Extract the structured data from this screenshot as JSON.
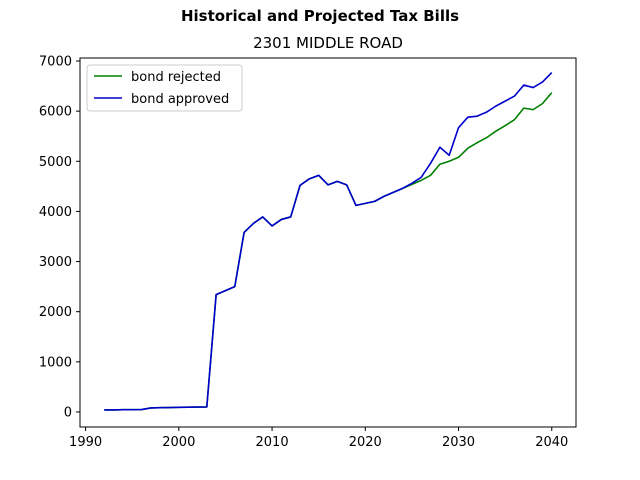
{
  "chart_data": {
    "type": "line",
    "suptitle": "Historical and Projected Tax Bills",
    "title": "2301 MIDDLE ROAD",
    "xlabel": "",
    "ylabel": "",
    "xlim": [
      1989.4,
      2042.6
    ],
    "ylim": [
      -300,
      7060
    ],
    "xticks": [
      1990,
      2000,
      2010,
      2020,
      2030,
      2040
    ],
    "yticks": [
      0,
      1000,
      2000,
      3000,
      4000,
      5000,
      6000,
      7000
    ],
    "grid": false,
    "legend": "upper left",
    "series": [
      {
        "name": "bond rejected",
        "color": "#008000",
        "x": [
          1992,
          1993,
          1994,
          1995,
          1996,
          1997,
          1998,
          1999,
          2000,
          2001,
          2002,
          2003,
          2004,
          2005,
          2006,
          2007,
          2008,
          2009,
          2010,
          2011,
          2012,
          2013,
          2014,
          2015,
          2016,
          2017,
          2018,
          2019,
          2020,
          2021,
          2022,
          2023,
          2024,
          2025,
          2026,
          2027,
          2028,
          2029,
          2030,
          2031,
          2032,
          2033,
          2034,
          2035,
          2036,
          2037,
          2038,
          2039,
          2040
        ],
        "y": [
          40,
          40,
          45,
          45,
          48,
          80,
          85,
          88,
          92,
          95,
          98,
          100,
          2340,
          2420,
          2500,
          3580,
          3760,
          3890,
          3710,
          3840,
          3890,
          4520,
          4650,
          4720,
          4530,
          4600,
          4530,
          4120,
          4160,
          4200,
          4300,
          4380,
          4460,
          4540,
          4620,
          4720,
          4940,
          5000,
          5080,
          5260,
          5370,
          5470,
          5600,
          5710,
          5830,
          6060,
          6030,
          6150,
          6370
        ]
      },
      {
        "name": "bond approved",
        "color": "#0000cc",
        "x": [
          1992,
          1993,
          1994,
          1995,
          1996,
          1997,
          1998,
          1999,
          2000,
          2001,
          2002,
          2003,
          2004,
          2005,
          2006,
          2007,
          2008,
          2009,
          2010,
          2011,
          2012,
          2013,
          2014,
          2015,
          2016,
          2017,
          2018,
          2019,
          2020,
          2021,
          2022,
          2023,
          2024,
          2025,
          2026,
          2027,
          2028,
          2029,
          2030,
          2031,
          2032,
          2033,
          2034,
          2035,
          2036,
          2037,
          2038,
          2039,
          2040
        ],
        "y": [
          40,
          40,
          45,
          45,
          48,
          80,
          85,
          88,
          92,
          95,
          98,
          100,
          2340,
          2420,
          2500,
          3580,
          3760,
          3890,
          3710,
          3840,
          3890,
          4520,
          4650,
          4720,
          4530,
          4600,
          4530,
          4120,
          4160,
          4200,
          4300,
          4380,
          4460,
          4560,
          4680,
          4960,
          5280,
          5120,
          5670,
          5880,
          5900,
          5980,
          6100,
          6200,
          6300,
          6520,
          6470,
          6580,
          6770
        ]
      }
    ]
  }
}
